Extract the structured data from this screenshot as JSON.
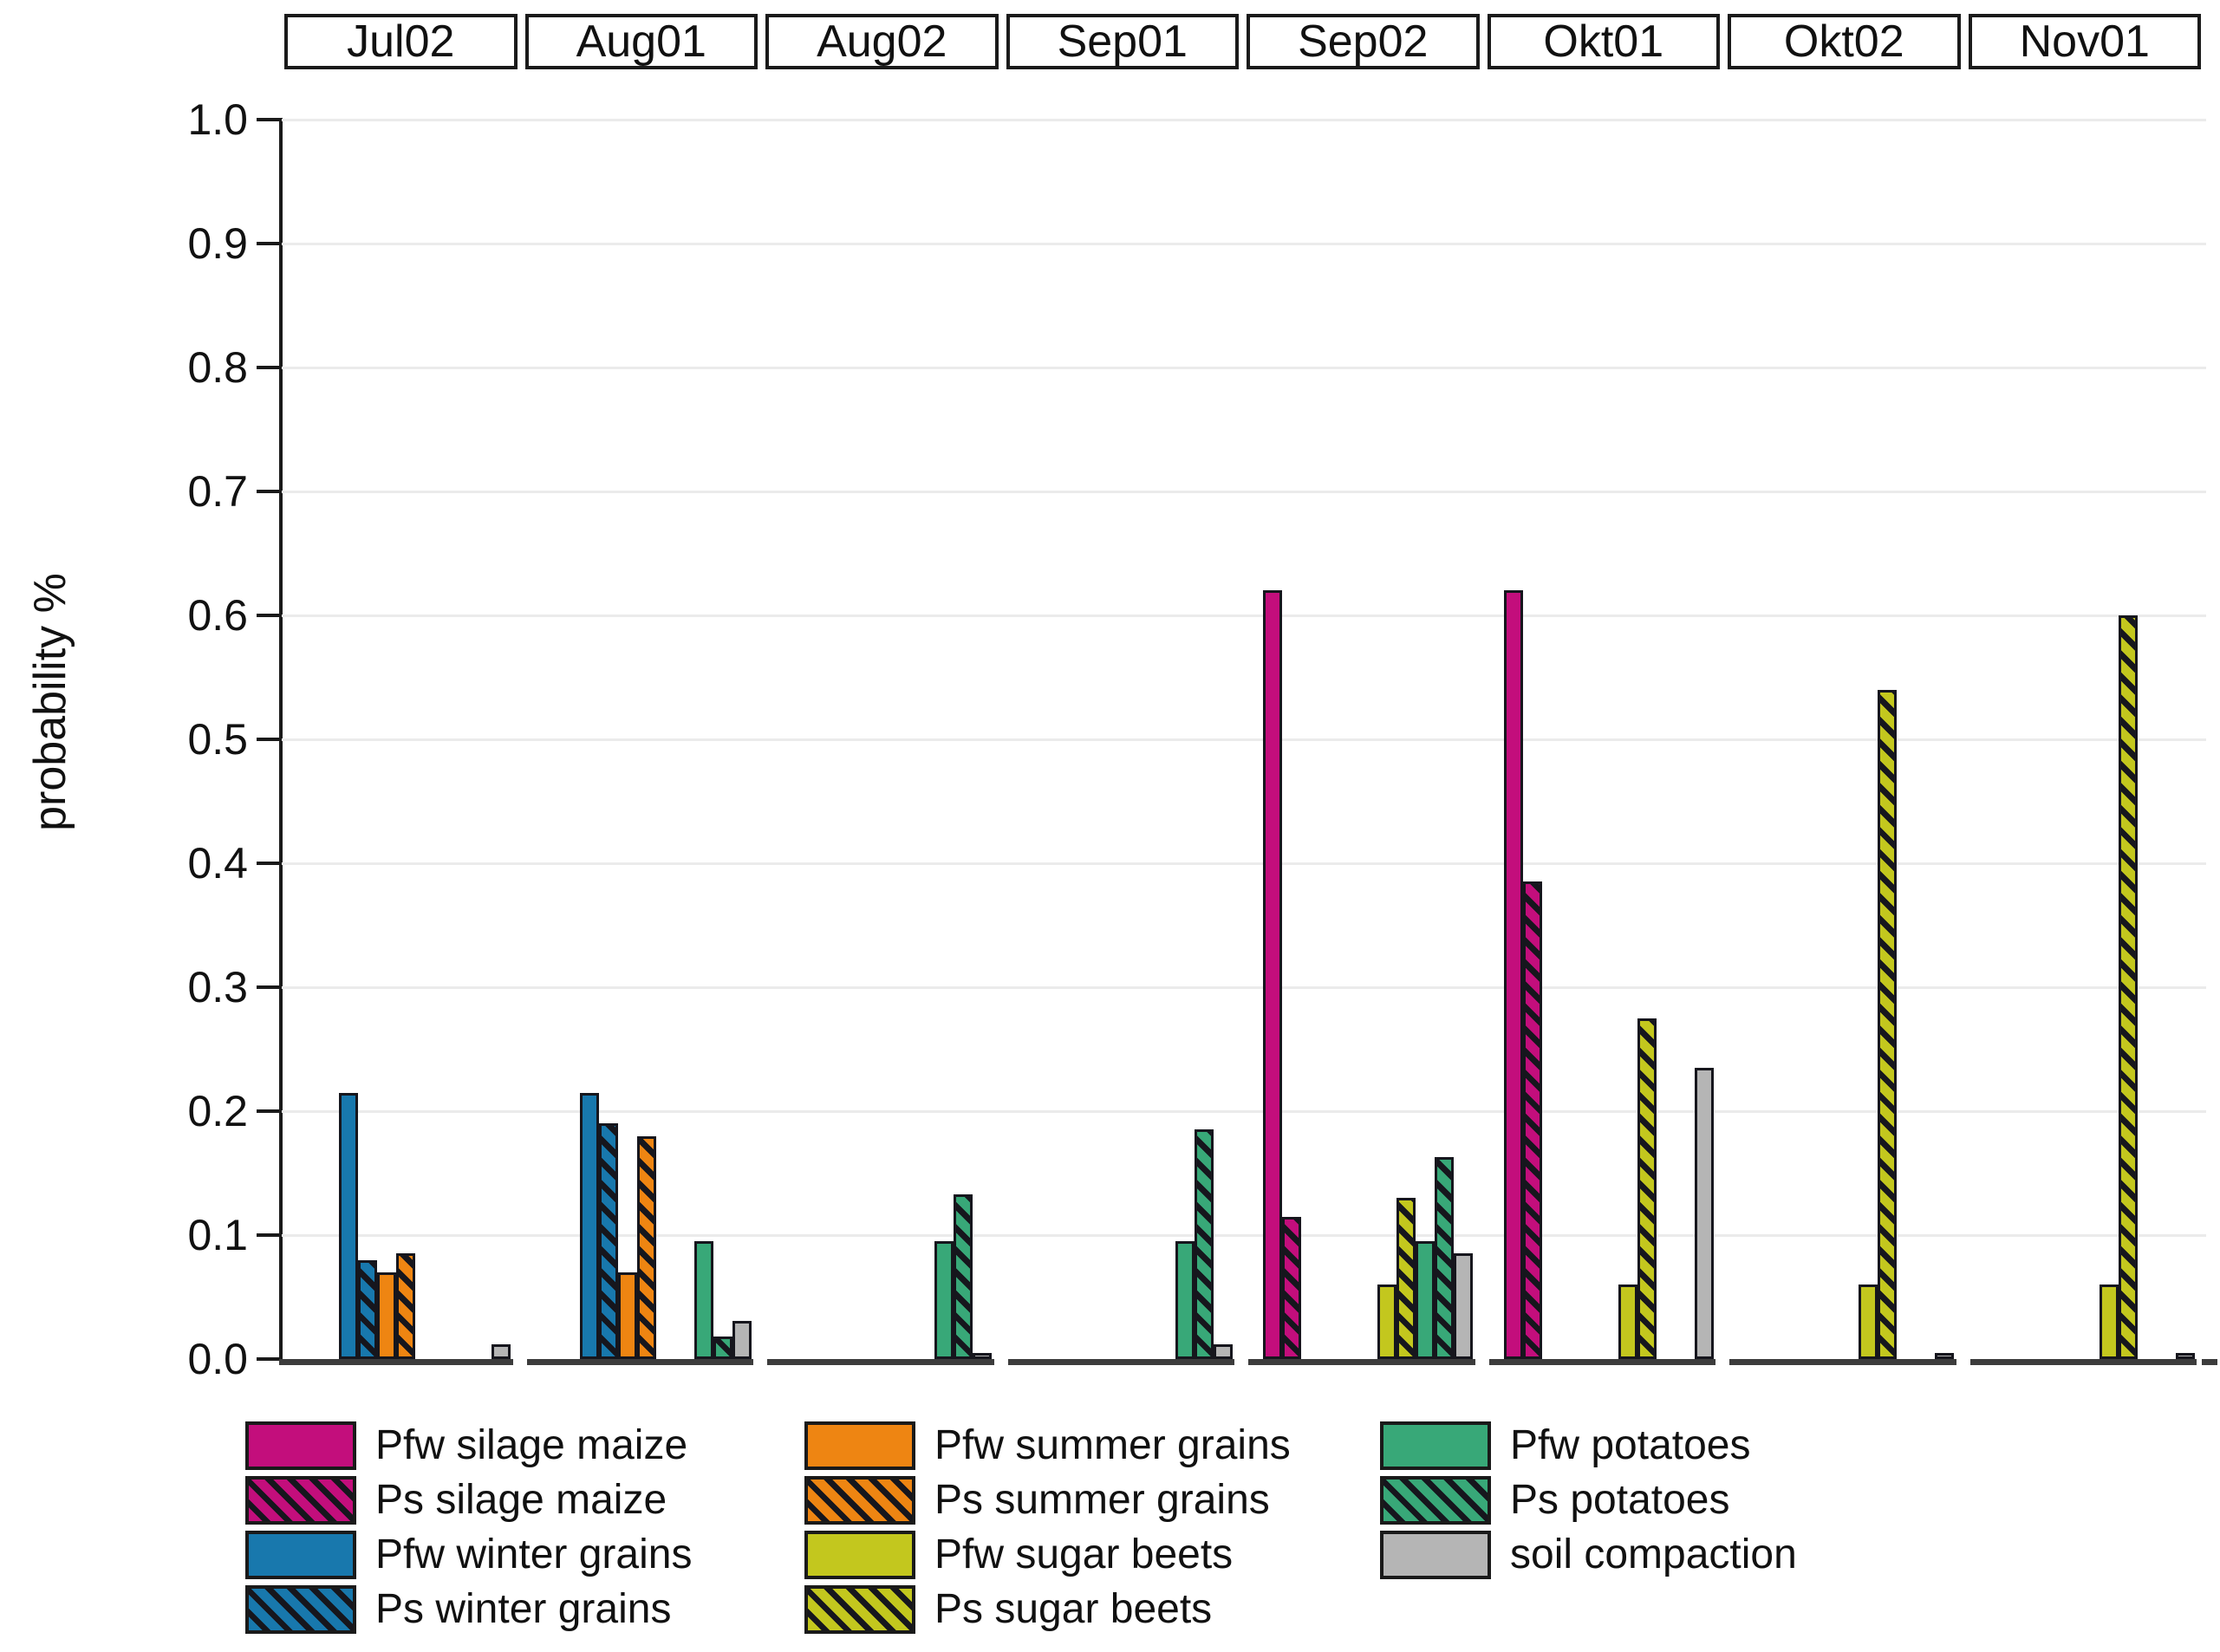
{
  "y_axis": {
    "label": "probability %",
    "ticks": [
      "1.0",
      "0.9",
      "0.8",
      "0.7",
      "0.6",
      "0.5",
      "0.4",
      "0.3",
      "0.2",
      "0.1",
      "0.0"
    ]
  },
  "panel_headers": [
    "Jul02",
    "Aug01",
    "Aug02",
    "Sep01",
    "Sep02",
    "Okt01",
    "Okt02",
    "Nov01"
  ],
  "colors": {
    "silage_maize": "#C30E7C",
    "winter_grains": "#1878AD",
    "summer_grains": "#EE8512",
    "sugar_beets": "#C3C71E",
    "potatoes": "#38A878",
    "soil_compaction": "#B5B5B5",
    "ink": "#1a1a1a",
    "gridline": "#ebebeb",
    "baseline": "#3c3c3c"
  },
  "chart_data": {
    "type": "bar",
    "categories": [
      "Jul02",
      "Aug01",
      "Aug02",
      "Sep01",
      "Sep02",
      "Okt01",
      "Okt02",
      "Nov01"
    ],
    "xlabel": "",
    "ylabel": "probability %",
    "ylim": [
      0,
      1.0
    ],
    "ytick_step": 0.1,
    "grid": true,
    "panel_headers_position": "top",
    "legend_position": "bottom",
    "legend_columns": [
      [
        0,
        1,
        2,
        3
      ],
      [
        4,
        5,
        6,
        7
      ],
      [
        8,
        9,
        10
      ]
    ],
    "series": [
      {
        "name": "Pfw silage maize",
        "color": "#C30E7C",
        "hatch": false,
        "values": [
          0,
          0,
          0,
          0,
          0.62,
          0.62,
          0,
          0
        ]
      },
      {
        "name": "Ps silage maize",
        "color": "#C30E7C",
        "hatch": true,
        "values": [
          0,
          0,
          0,
          0,
          0.115,
          0.385,
          0,
          0
        ]
      },
      {
        "name": "Pfw winter grains",
        "color": "#1878AD",
        "hatch": false,
        "values": [
          0.215,
          0.215,
          0,
          0,
          0,
          0,
          0,
          0
        ]
      },
      {
        "name": "Ps winter grains",
        "color": "#1878AD",
        "hatch": true,
        "values": [
          0.08,
          0.19,
          0,
          0,
          0,
          0,
          0,
          0
        ]
      },
      {
        "name": "Pfw summer grains",
        "color": "#EE8512",
        "hatch": false,
        "values": [
          0.07,
          0.07,
          0,
          0,
          0,
          0,
          0,
          0
        ]
      },
      {
        "name": "Ps summer grains",
        "color": "#EE8512",
        "hatch": true,
        "values": [
          0.085,
          0.18,
          0,
          0,
          0,
          0,
          0,
          0
        ]
      },
      {
        "name": "Pfw sugar beets",
        "color": "#C3C71E",
        "hatch": false,
        "values": [
          0,
          0,
          0,
          0,
          0.06,
          0.06,
          0.06,
          0.06
        ]
      },
      {
        "name": "Ps sugar beets",
        "color": "#C3C71E",
        "hatch": true,
        "values": [
          0,
          0,
          0,
          0,
          0.13,
          0.275,
          0.54,
          0.6
        ]
      },
      {
        "name": "Pfw potatoes",
        "color": "#38A878",
        "hatch": false,
        "values": [
          0,
          0.095,
          0.095,
          0.095,
          0.095,
          0,
          0,
          0
        ]
      },
      {
        "name": "Ps potatoes",
        "color": "#38A878",
        "hatch": true,
        "values": [
          0,
          0.018,
          0.133,
          0.185,
          0.163,
          0,
          0,
          0
        ]
      },
      {
        "name": "soil compaction",
        "color": "#B5B5B5",
        "hatch": false,
        "values": [
          0.012,
          0.031,
          0.003,
          0.012,
          0.085,
          0.235,
          0.003,
          0.003
        ]
      }
    ]
  }
}
